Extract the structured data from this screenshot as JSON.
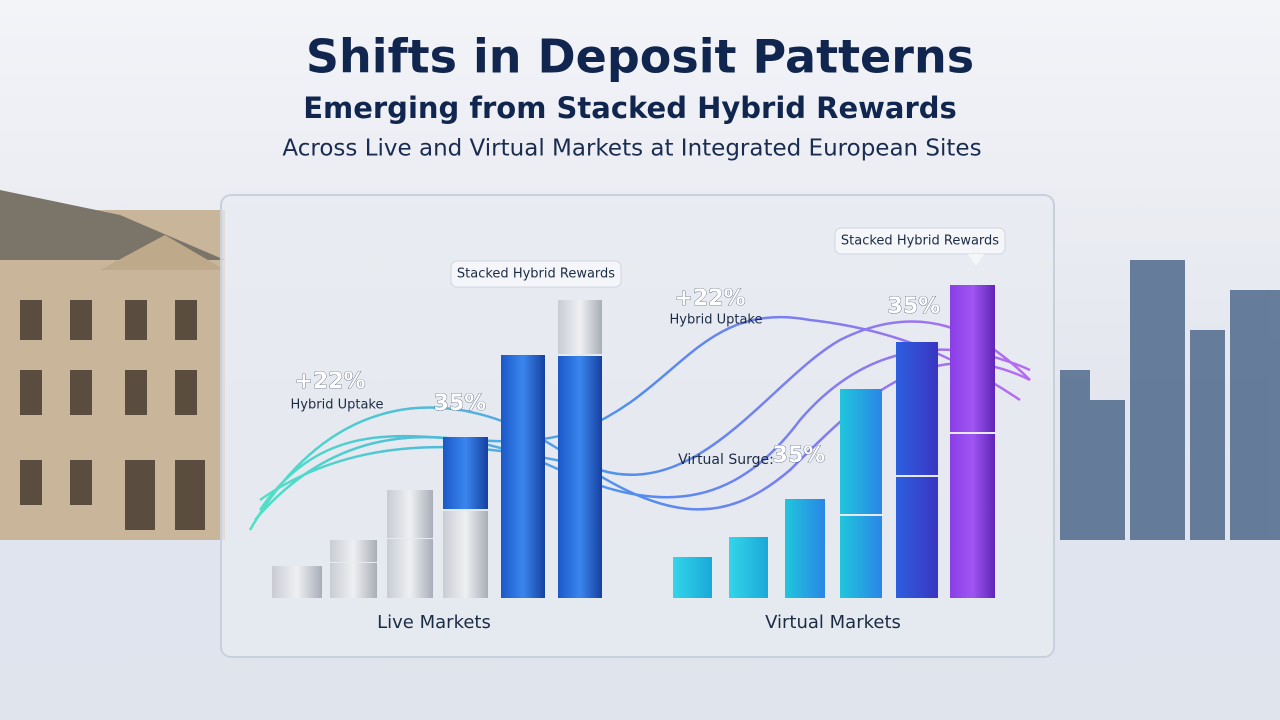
{
  "header": {
    "title": "Shifts in Deposit Patterns",
    "subtitle": "Emerging from Stacked Hybrid Rewards",
    "description": "Across Live and Virtual Markets at Integrated European Sites"
  },
  "live": {
    "label": "Live Markets",
    "callout": "Stacked Hybrid Rewards",
    "growth": "+22%",
    "growth_label": "Hybrid Uptake",
    "share": "35%"
  },
  "virtual": {
    "label": "Virtual Markets",
    "callout": "Stacked Hybrid Rewards",
    "growth": "+22%",
    "growth_label": "Hybrid Uptake",
    "surge_label": "Virtual Surge:",
    "surge": "35%",
    "share": "35%"
  }
}
